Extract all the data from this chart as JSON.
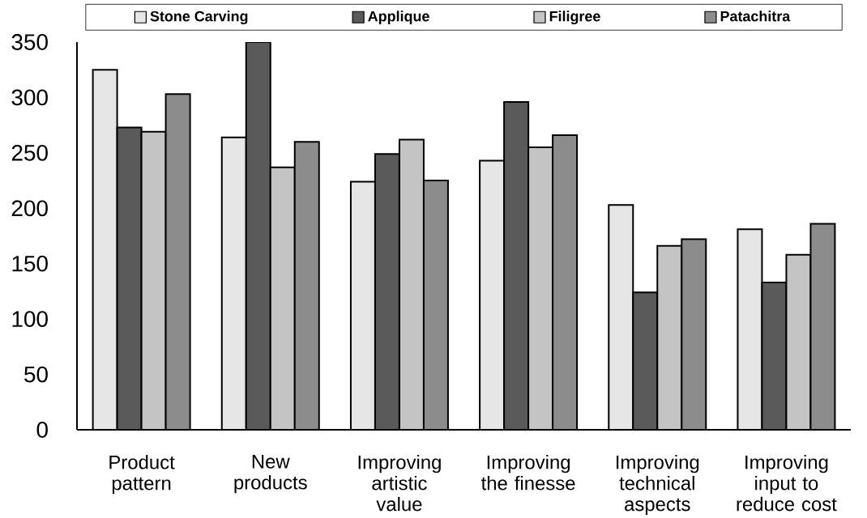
{
  "chart_data": {
    "type": "bar",
    "categories": [
      "Product pattern",
      "New products",
      "Improving artistic value",
      "Improving the finesse",
      "Improving technical aspects",
      "Improving input to reduce cost"
    ],
    "series": [
      {
        "name": "Stone Carving",
        "color": "#e6e6e6",
        "values": [
          325,
          264,
          224,
          243,
          203,
          181
        ]
      },
      {
        "name": "Applique",
        "color": "#5a5a5a",
        "values": [
          273,
          350,
          249,
          296,
          124,
          133
        ]
      },
      {
        "name": "Filigree",
        "color": "#c4c4c4",
        "values": [
          269,
          237,
          262,
          255,
          166,
          158
        ]
      },
      {
        "name": "Patachitra",
        "color": "#8c8c8c",
        "values": [
          303,
          260,
          225,
          266,
          172,
          186
        ]
      }
    ],
    "ylim": [
      0,
      350
    ],
    "yticks": [
      0,
      50,
      100,
      150,
      200,
      250,
      300,
      350
    ],
    "legend": "top"
  }
}
